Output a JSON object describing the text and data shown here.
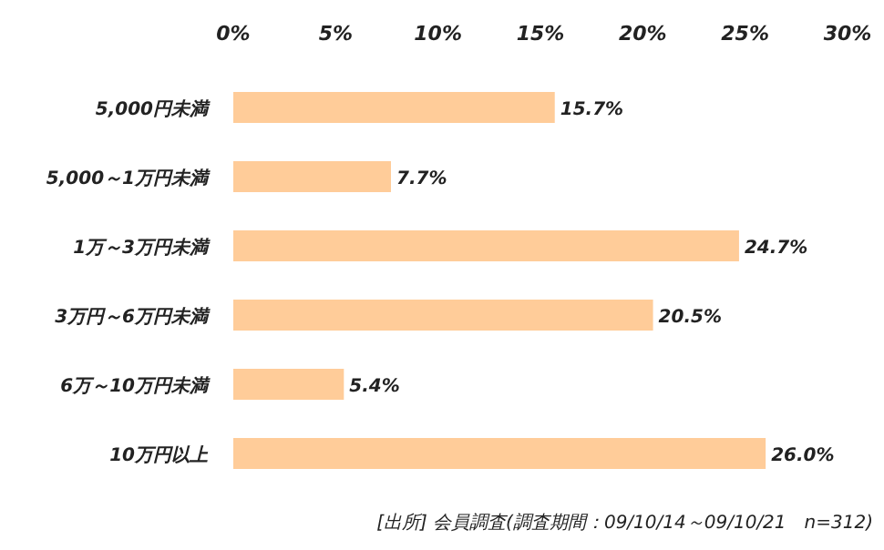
{
  "chart_data": {
    "type": "bar",
    "orientation": "horizontal",
    "categories": [
      "5,000円未満",
      "5,000～1万円未満",
      "1万～3万円未満",
      "3万円～6万円未満",
      "6万～10万円未満",
      "10万円以上"
    ],
    "values": [
      15.7,
      7.7,
      24.7,
      20.5,
      5.4,
      26.0
    ],
    "value_labels": [
      "15.7%",
      "7.7%",
      "24.7%",
      "20.5%",
      "5.4%",
      "26.0%"
    ],
    "color": "#ffcc99",
    "xlim": [
      0,
      30
    ],
    "xticks": [
      {
        "value": 0,
        "label": "0%"
      },
      {
        "value": 5,
        "label": "5%"
      },
      {
        "value": 10,
        "label": "10%"
      },
      {
        "value": 15,
        "label": "15%"
      },
      {
        "value": 20,
        "label": "20%"
      },
      {
        "value": 25,
        "label": "25%"
      },
      {
        "value": 30,
        "label": "30%"
      }
    ],
    "annotations": [
      "[出所] 会員調査(調査期間：09/10/14～09/10/21　n=312)"
    ]
  }
}
